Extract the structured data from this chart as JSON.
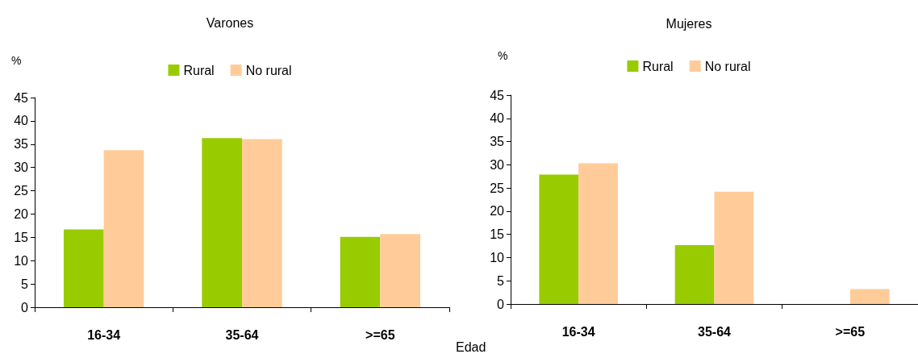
{
  "chart_data": [
    {
      "type": "bar",
      "title": "Varones",
      "ylabel": "%",
      "xlabel": "Edad",
      "categories": [
        "16-34",
        "35-64",
        ">=65"
      ],
      "series": [
        {
          "name": "Rural",
          "color": "#99cc00",
          "values": [
            16.7,
            36.3,
            15.1
          ]
        },
        {
          "name": "No rural",
          "color": "#ffcc99",
          "values": [
            33.7,
            36.1,
            15.7
          ]
        }
      ],
      "ylim": [
        0,
        45
      ],
      "yticks": [
        0,
        5,
        10,
        15,
        20,
        25,
        30,
        35,
        40,
        45
      ],
      "grid": false,
      "legend": "top"
    },
    {
      "type": "bar",
      "title": "Mujeres",
      "ylabel": "%",
      "categories": [
        "16-34",
        "35-64",
        ">=65"
      ],
      "series": [
        {
          "name": "Rural",
          "color": "#99cc00",
          "values": [
            27.9,
            12.7,
            null
          ]
        },
        {
          "name": "No rural",
          "color": "#ffcc99",
          "values": [
            30.3,
            24.2,
            3.2
          ]
        }
      ],
      "ylim": [
        0,
        45
      ],
      "yticks": [
        0,
        5,
        10,
        15,
        20,
        25,
        30,
        35,
        40,
        45
      ],
      "grid": false,
      "legend": "top"
    }
  ]
}
